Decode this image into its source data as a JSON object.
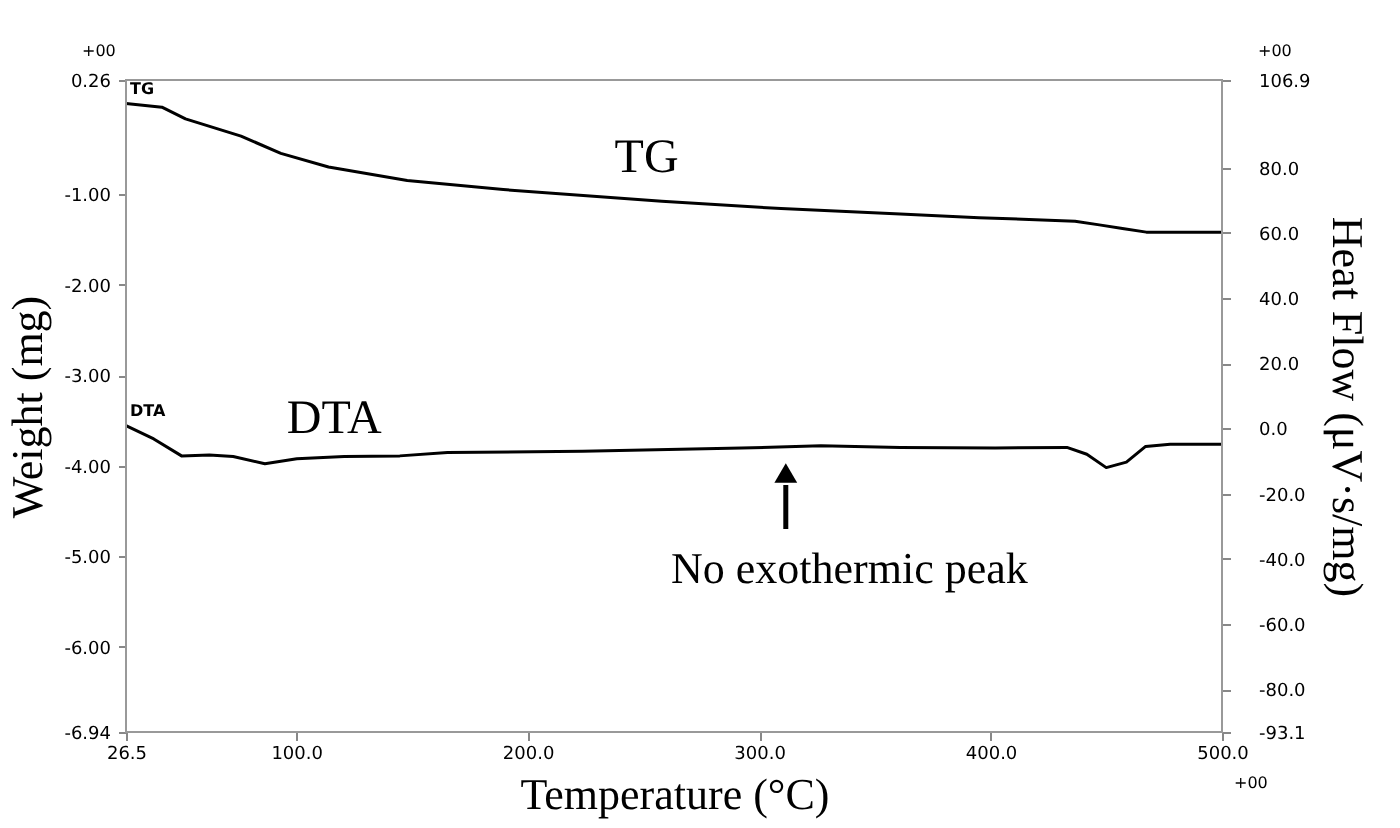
{
  "chart_data": {
    "type": "line",
    "xlabel": "Temperature (°C)",
    "ylabel": "Weight (mg)",
    "y2label": "Heat Flow  (μV·s/mg)",
    "xlim": [
      26.5,
      500
    ],
    "xticks": [
      {
        "value": 26.5,
        "label": "26.5"
      },
      {
        "value": 100,
        "label": "100.0"
      },
      {
        "value": 200,
        "label": "200.0"
      },
      {
        "value": 300,
        "label": "300.0"
      },
      {
        "value": 400,
        "label": "400.0"
      },
      {
        "value": 500,
        "label": "500.0"
      }
    ],
    "ylim": [
      -6.94,
      0.26
    ],
    "yticks": [
      {
        "value": 0.26,
        "label": "0.26"
      },
      {
        "value": -1,
        "label": "-1.00"
      },
      {
        "value": -2,
        "label": "-2.00"
      },
      {
        "value": -3,
        "label": "-3.00"
      },
      {
        "value": -4,
        "label": "-4.00"
      },
      {
        "value": -5,
        "label": "-5.00"
      },
      {
        "value": -6,
        "label": "-6.00"
      },
      {
        "value": -6.94,
        "label": "-6.94"
      }
    ],
    "y2lim": [
      -93.1,
      106.9
    ],
    "y2ticks": [
      {
        "value": 106.9,
        "label": "106.9"
      },
      {
        "value": 80,
        "label": "80.0"
      },
      {
        "value": 60,
        "label": "60.0"
      },
      {
        "value": 40,
        "label": "40.0"
      },
      {
        "value": 20,
        "label": "20.0"
      },
      {
        "value": 0,
        "label": "0.0"
      },
      {
        "value": -20,
        "label": "-20.0"
      },
      {
        "value": -40,
        "label": "-40.0"
      },
      {
        "value": -60,
        "label": "-60.0"
      },
      {
        "value": -80,
        "label": "-80.0"
      },
      {
        "value": -93.1,
        "label": "-93.1"
      }
    ],
    "grid": false,
    "marker": "none",
    "line_style": "solid",
    "series": [
      {
        "name": "TG",
        "color": "#000000",
        "x": [
          26.5,
          42,
          52.2,
          76.2,
          93.4,
          114,
          148,
          189.5,
          258,
          309.5,
          361,
          395,
          436.5,
          447,
          457,
          467.3,
          500
        ],
        "values": [
          0.0,
          -0.04,
          -0.17,
          -0.36,
          -0.55,
          -0.7,
          -0.85,
          -0.95,
          -1.08,
          -1.16,
          -1.22,
          -1.26,
          -1.3,
          -1.34,
          -1.38,
          -1.42,
          -1.42
        ]
      },
      {
        "name": "DTA",
        "color": "#000000",
        "axis": "y2",
        "x": [
          26.5,
          38.5,
          50.5,
          62.5,
          72.8,
          86.5,
          100.3,
          120.8,
          144.8,
          165.4,
          223.8,
          292.4,
          326.7,
          361,
          402,
          433,
          441.6,
          450,
          458.7,
          467,
          477.6,
          500
        ],
        "values": [
          0.9,
          -3.2,
          -8.4,
          -8.1,
          -8.6,
          -10.8,
          -9.3,
          -8.6,
          -8.4,
          -7.4,
          -7.0,
          -6.0,
          -5.3,
          -5.8,
          -6.0,
          -5.8,
          -7.9,
          -12.0,
          -10.3,
          -5.5,
          -4.8,
          -4.8
        ]
      }
    ],
    "annotations": [
      "TG",
      "DTA",
      "No exothermic peak",
      "+00",
      "+00",
      "+00"
    ]
  }
}
